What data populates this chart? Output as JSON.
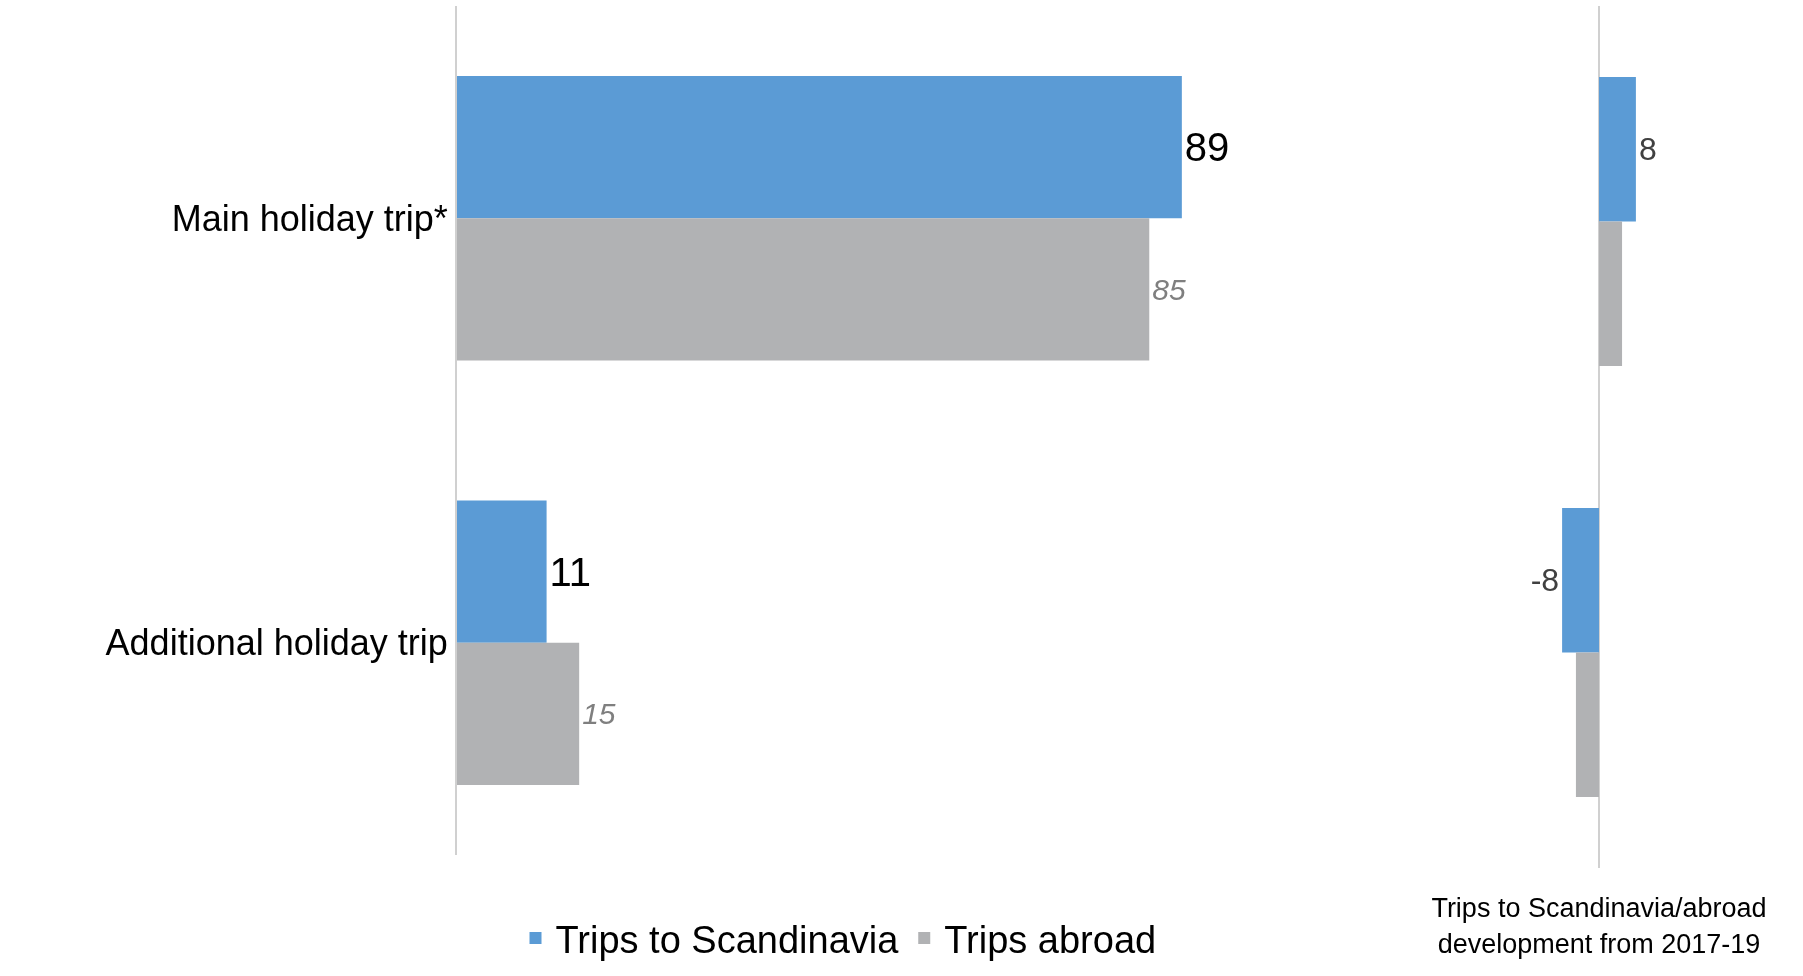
{
  "chart_data": [
    {
      "type": "bar",
      "orientation": "horizontal",
      "categories": [
        "Main holiday trip*",
        "Additional holiday trip"
      ],
      "series": [
        {
          "name": "Trips to Scandinavia",
          "color": "#5b9bd5",
          "values": [
            89,
            11
          ]
        },
        {
          "name": "Trips abroad",
          "color": "#b1b2b4",
          "values": [
            85,
            15
          ]
        }
      ],
      "data_labels": true,
      "tick_labels": "y",
      "legend": "bottom",
      "grid": false
    },
    {
      "type": "bar",
      "orientation": "horizontal",
      "categories": [
        null,
        null
      ],
      "series": [
        {
          "color": "#5b9bd5",
          "values": [
            8,
            -8
          ],
          "value_labels": [
            "8",
            "-8"
          ]
        },
        {
          "color": "#b1b2b4",
          "values": [
            5,
            -5
          ],
          "value_labels": [
            null,
            null
          ]
        }
      ],
      "xlabel": "Trips to Scandinavia/abroad development from 2017-19",
      "tick_labels": false,
      "legend": false,
      "grid": false
    }
  ]
}
